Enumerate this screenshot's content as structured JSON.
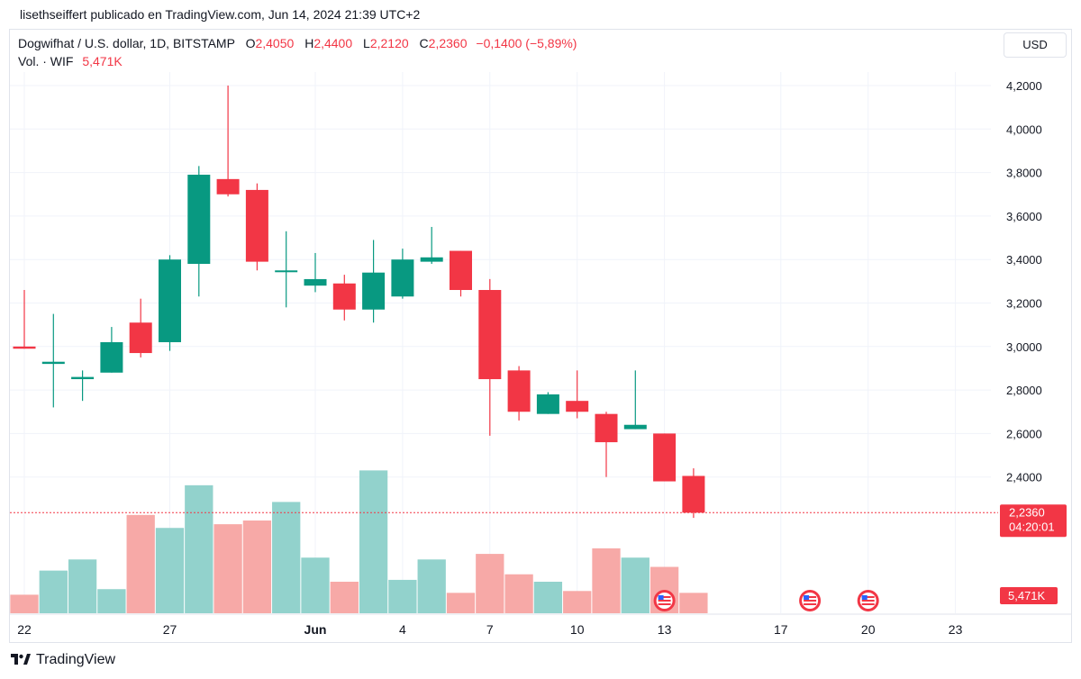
{
  "caption": "lisethseiffert publicado en TradingView.com, Jun 14, 2024 21:39 UTC+2",
  "header": {
    "symbol": "Dogwifhat / U.S. dollar, 1D, BITSTAMP",
    "o_label": "O",
    "o_value": "2,4050",
    "h_label": "H",
    "h_value": "2,4400",
    "l_label": "L",
    "l_value": "2,2120",
    "c_label": "C",
    "c_value": "2,2360",
    "change": "−0,1400 (−5,89%)",
    "volume_label": "Vol. · WIF",
    "volume_value": "5,471K"
  },
  "currency_button": "USD",
  "price_tag": {
    "price": "2,2360",
    "countdown": "04:20:01",
    "volume": "5,471K"
  },
  "footer": {
    "brand": "TradingView"
  },
  "colors": {
    "up": "#089981",
    "down": "#f23645",
    "vol_up": "#92d2cc",
    "vol_down": "#f7a9a7",
    "grid": "#f0f3fa",
    "text": "#131722"
  },
  "chart_data": {
    "type": "candlestick",
    "title": "Dogwifhat / U.S. dollar, 1D, BITSTAMP",
    "ylim": [
      2.2,
      4.2
    ],
    "y_ticks": [
      {
        "value": 4.2,
        "label": "4,2000"
      },
      {
        "value": 4.0,
        "label": "4,0000"
      },
      {
        "value": 3.8,
        "label": "3,8000"
      },
      {
        "value": 3.6,
        "label": "3,6000"
      },
      {
        "value": 3.4,
        "label": "3,4000"
      },
      {
        "value": 3.2,
        "label": "3,2000"
      },
      {
        "value": 3.0,
        "label": "3,0000"
      },
      {
        "value": 2.8,
        "label": "2,8000"
      },
      {
        "value": 2.6,
        "label": "2,6000"
      },
      {
        "value": 2.4,
        "label": "2,4000"
      }
    ],
    "x_ticks": [
      {
        "index": 0,
        "label": "22",
        "bold": false
      },
      {
        "index": 5,
        "label": "27",
        "bold": false
      },
      {
        "index": 10,
        "label": "Jun",
        "bold": true
      },
      {
        "index": 13,
        "label": "4",
        "bold": false
      },
      {
        "index": 16,
        "label": "7",
        "bold": false
      },
      {
        "index": 19,
        "label": "10",
        "bold": false
      },
      {
        "index": 22,
        "label": "13",
        "bold": false
      },
      {
        "index": 26,
        "label": "17",
        "bold": false
      },
      {
        "index": 29,
        "label": "20",
        "bold": false
      },
      {
        "index": 32,
        "label": "23",
        "bold": false
      }
    ],
    "candles": [
      {
        "o": 3.0,
        "h": 3.26,
        "l": 2.99,
        "c": 2.99,
        "v": 1.0
      },
      {
        "o": 2.92,
        "h": 3.15,
        "l": 2.72,
        "c": 2.93,
        "v": 2.3
      },
      {
        "o": 2.85,
        "h": 2.89,
        "l": 2.75,
        "c": 2.86,
        "v": 2.9
      },
      {
        "o": 2.88,
        "h": 3.09,
        "l": 2.88,
        "c": 3.02,
        "v": 1.3
      },
      {
        "o": 3.11,
        "h": 3.22,
        "l": 2.95,
        "c": 2.97,
        "v": 5.3
      },
      {
        "o": 3.02,
        "h": 3.42,
        "l": 2.98,
        "c": 3.4,
        "v": 4.6
      },
      {
        "o": 3.38,
        "h": 3.83,
        "l": 3.23,
        "c": 3.79,
        "v": 6.9
      },
      {
        "o": 3.77,
        "h": 4.2,
        "l": 3.69,
        "c": 3.7,
        "v": 4.8
      },
      {
        "o": 3.72,
        "h": 3.75,
        "l": 3.35,
        "c": 3.39,
        "v": 5.0
      },
      {
        "o": 3.35,
        "h": 3.53,
        "l": 3.18,
        "c": 3.35,
        "v": 6.0
      },
      {
        "o": 3.28,
        "h": 3.43,
        "l": 3.25,
        "c": 3.31,
        "v": 3.0
      },
      {
        "o": 3.29,
        "h": 3.33,
        "l": 3.12,
        "c": 3.17,
        "v": 1.7
      },
      {
        "o": 3.17,
        "h": 3.49,
        "l": 3.11,
        "c": 3.34,
        "v": 7.7
      },
      {
        "o": 3.23,
        "h": 3.45,
        "l": 3.22,
        "c": 3.4,
        "v": 1.8
      },
      {
        "o": 3.39,
        "h": 3.55,
        "l": 3.38,
        "c": 3.41,
        "v": 2.9
      },
      {
        "o": 3.44,
        "h": 3.44,
        "l": 3.23,
        "c": 3.26,
        "v": 1.1
      },
      {
        "o": 3.26,
        "h": 3.31,
        "l": 2.59,
        "c": 2.85,
        "v": 3.2
      },
      {
        "o": 2.89,
        "h": 2.91,
        "l": 2.66,
        "c": 2.7,
        "v": 2.1
      },
      {
        "o": 2.69,
        "h": 2.79,
        "l": 2.69,
        "c": 2.78,
        "v": 1.7
      },
      {
        "o": 2.75,
        "h": 2.89,
        "l": 2.67,
        "c": 2.7,
        "v": 1.2
      },
      {
        "o": 2.69,
        "h": 2.7,
        "l": 2.4,
        "c": 2.56,
        "v": 3.5
      },
      {
        "o": 2.62,
        "h": 2.89,
        "l": 2.62,
        "c": 2.64,
        "v": 3.0
      },
      {
        "o": 2.6,
        "h": 2.6,
        "l": 2.38,
        "c": 2.38,
        "v": 2.5
      },
      {
        "o": 2.405,
        "h": 2.44,
        "l": 2.212,
        "c": 2.236,
        "v": 1.1
      }
    ],
    "current_price": 2.236,
    "event_markers": [
      22,
      27,
      29
    ]
  }
}
